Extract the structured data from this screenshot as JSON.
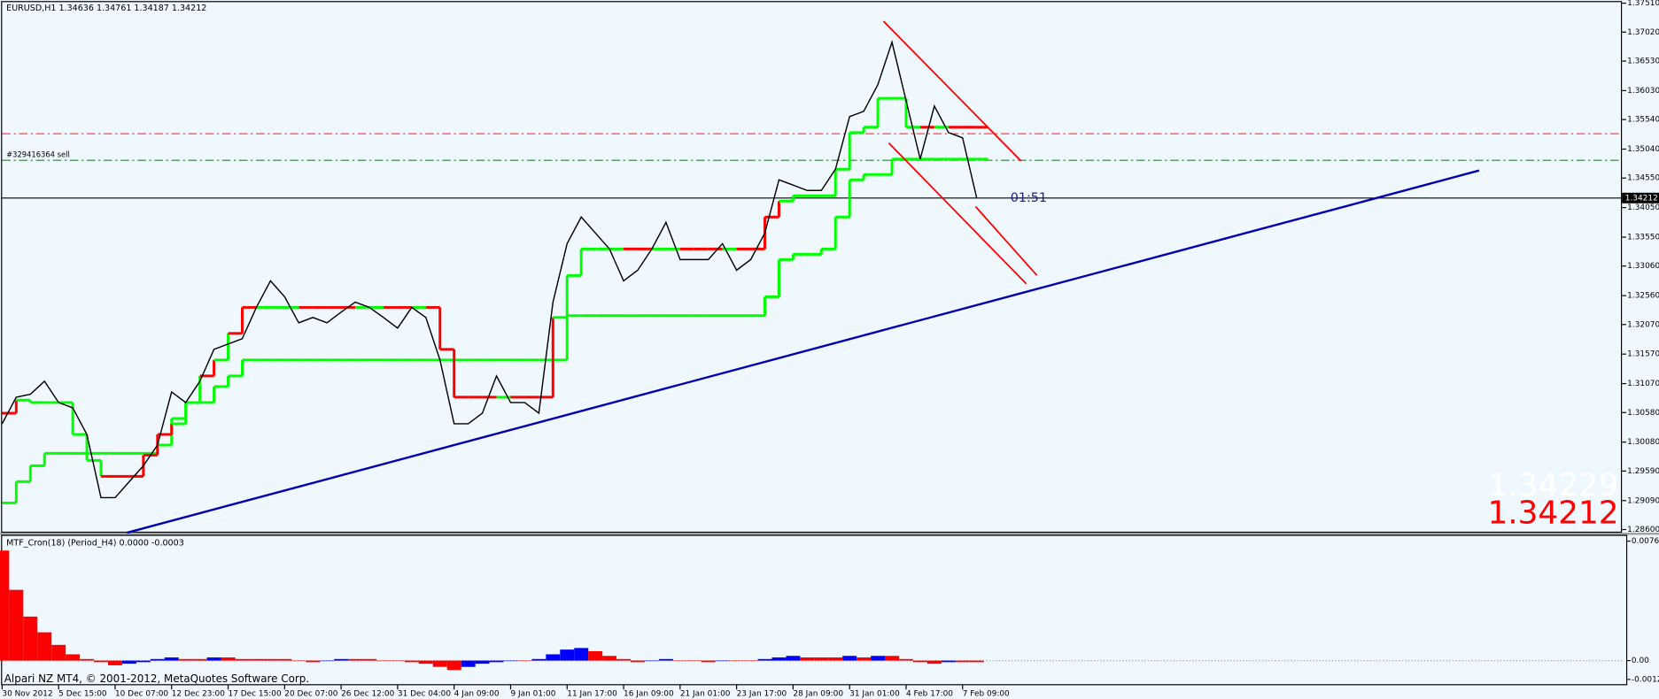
{
  "chart_data": [
    {
      "type": "line",
      "title": "EURUSD,H1  1.34636 1.34761 1.34187 1.34212",
      "categories": [
        "30 Nov 2012",
        null,
        null,
        null,
        "5 Dec 15:00",
        null,
        null,
        null,
        "10 Dec 07:00",
        null,
        null,
        null,
        "12 Dec 23:00",
        null,
        null,
        null,
        "17 Dec 15:00",
        null,
        null,
        null,
        "20 Dec 07:00",
        null,
        null,
        null,
        "26 Dec 12:00",
        null,
        null,
        null,
        "31 Dec 04:00",
        null,
        null,
        null,
        "4 Jan 09:00",
        null,
        null,
        null,
        "9 Jan 01:00",
        null,
        null,
        null,
        "11 Jan 17:00",
        null,
        null,
        null,
        "16 Jan 09:00",
        null,
        null,
        null,
        "21 Jan 01:00",
        null,
        null,
        null,
        "23 Jan 17:00",
        null,
        null,
        null,
        "28 Jan 09:00",
        null,
        null,
        null,
        "31 Jan 01:00",
        null,
        null,
        null,
        "4 Feb 17:00",
        null,
        null,
        null,
        "7 Feb 09:00",
        null
      ],
      "series": [
        {
          "color": "#000000",
          "values": [
            1.3039,
            1.3084,
            1.3089,
            1.3111,
            1.3075,
            1.3066,
            1.3021,
            1.2914,
            1.2914,
            1.2941,
            1.2968,
            1.3003,
            1.3093,
            1.3075,
            1.3111,
            1.3165,
            1.3174,
            1.3183,
            1.3236,
            1.3281,
            1.3254,
            1.321,
            1.3219,
            1.321,
            1.3228,
            1.3245,
            1.3236,
            1.3219,
            1.3201,
            1.3236,
            1.3219,
            1.3147,
            1.3039,
            1.3039,
            1.3057,
            1.312,
            1.3075,
            1.3075,
            1.3057,
            1.3245,
            1.3344,
            1.3389,
            1.3362,
            1.3335,
            1.3281,
            1.3299,
            1.3335,
            1.338,
            1.3317,
            1.3317,
            1.3317,
            1.3344,
            1.3299,
            1.3317,
            1.3362,
            1.3452,
            1.3443,
            1.3434,
            1.3434,
            1.347,
            1.3559,
            1.3568,
            1.3613,
            1.3685,
            1.3586,
            1.3487,
            1.3577,
            1.3532,
            1.3523,
            1.3421
          ]
        },
        {
          "color": "#00ff00",
          "down_color": "#ff0000",
          "values": [
            1.3057,
            1.3079,
            1.3075,
            1.3075,
            1.3075,
            1.3021,
            1.2977,
            1.295,
            1.295,
            1.295,
            1.2986,
            1.3021,
            1.3039,
            1.3075,
            1.312,
            1.3147,
            1.3192,
            1.3236,
            1.3236,
            1.3236,
            1.3236,
            1.3236,
            1.3236,
            1.3236,
            1.3236,
            1.3236,
            1.3236,
            1.3236,
            1.3236,
            1.3236,
            1.3236,
            1.3165,
            1.3084,
            1.3084,
            1.3084,
            1.3084,
            1.3084,
            1.3084,
            1.3084,
            1.3219,
            1.329,
            1.3335,
            1.3335,
            1.3335,
            1.3335,
            1.3335,
            1.3335,
            1.3335,
            1.3335,
            1.3335,
            1.3335,
            1.3335,
            1.3335,
            1.3335,
            1.3389,
            1.3416,
            1.3425,
            1.3425,
            1.3425,
            1.347,
            1.3532,
            1.3541,
            1.359,
            1.359,
            1.3541,
            1.3541,
            1.3541,
            1.3541,
            1.3541,
            1.3541
          ]
        },
        {
          "color": "#00ff00",
          "values": [
            1.2905,
            1.2941,
            1.2968,
            1.2989,
            1.2989,
            1.2989,
            1.2989,
            1.2989,
            1.2989,
            1.2989,
            1.2989,
            1.3003,
            1.3048,
            1.3075,
            1.3075,
            1.3102,
            1.312,
            1.3147,
            1.3147,
            1.3147,
            1.3147,
            1.3147,
            1.3147,
            1.3147,
            1.3147,
            1.3147,
            1.3147,
            1.3147,
            1.3147,
            1.3147,
            1.3147,
            1.3147,
            1.3147,
            1.3147,
            1.3147,
            1.3147,
            1.3147,
            1.3147,
            1.3147,
            1.3147,
            1.3222,
            1.3222,
            1.3222,
            1.3222,
            1.3222,
            1.3222,
            1.3222,
            1.3222,
            1.3222,
            1.3222,
            1.3222,
            1.3222,
            1.3222,
            1.3222,
            1.3254,
            1.3317,
            1.3326,
            1.3326,
            1.3335,
            1.3389,
            1.3452,
            1.3461,
            1.3461,
            1.3487,
            1.3487,
            1.3487,
            1.3487,
            1.3487,
            1.3487,
            1.3487
          ]
        }
      ],
      "ylim": [
        1.286,
        1.3751
      ],
      "yticks": [
        {
          "value": 1.3751,
          "label": "1.37510"
        },
        {
          "value": 1.3702,
          "label": "1.37020"
        },
        {
          "value": 1.3653,
          "label": "1.36530"
        },
        {
          "value": 1.3603,
          "label": "1.36030"
        },
        {
          "value": 1.3554,
          "label": "1.35540"
        },
        {
          "value": 1.3504,
          "label": "1.35040"
        },
        {
          "value": 1.3455,
          "label": "1.34550"
        },
        {
          "value": 1.3405,
          "label": "1.34050"
        },
        {
          "value": 1.3355,
          "label": "1.33550"
        },
        {
          "value": 1.3306,
          "label": "1.33060"
        },
        {
          "value": 1.3256,
          "label": "1.32560"
        },
        {
          "value": 1.3207,
          "label": "1.32070"
        },
        {
          "value": 1.3157,
          "label": "1.31570"
        },
        {
          "value": 1.3107,
          "label": "1.31070"
        },
        {
          "value": 1.3058,
          "label": "1.30580"
        },
        {
          "value": 1.3008,
          "label": "1.30080"
        },
        {
          "value": 1.2959,
          "label": "1.29590"
        },
        {
          "value": 1.2909,
          "label": "1.29090"
        },
        {
          "value": 1.286,
          "label": "1.28600"
        }
      ],
      "stop_level": {
        "value": 1.353,
        "color": "#ff4040"
      },
      "order_level": {
        "value": 1.3485,
        "color": "#00a000",
        "label": "#329416364 sell"
      },
      "bid": 1.34212,
      "ask": 1.34229,
      "timer": "01:51"
    },
    {
      "type": "bar",
      "title": "MTF_Cron(18) (Period_H4) 0.0000 -0.0003",
      "values": [
        0.007,
        0.0045,
        0.0028,
        0.0018,
        0.001,
        0.0004,
        0.0001,
        -0.0001,
        -0.0003,
        -0.0002,
        -0.0001,
        0.0001,
        0.0002,
        0.0001,
        0.0001,
        0.0002,
        0.0002,
        0.0001,
        0.0001,
        0.0001,
        0.0001,
        0.0,
        -0.0001,
        0.0,
        0.0001,
        0.0001,
        0.0001,
        0.0,
        0.0,
        -0.0001,
        -0.0002,
        -0.0004,
        -0.0006,
        -0.0004,
        -0.0002,
        -0.0001,
        0.0,
        0.0,
        0.0001,
        0.0004,
        0.0007,
        0.0008,
        0.0006,
        0.0003,
        0.0001,
        -0.0001,
        0.0,
        0.0001,
        0.0,
        0.0,
        -0.0001,
        0.0,
        0.0,
        0.0,
        0.0001,
        0.0002,
        0.0003,
        0.0002,
        0.0002,
        0.0002,
        0.0003,
        0.0002,
        0.0003,
        0.0003,
        0.0001,
        -0.0001,
        -0.0002,
        -0.0001,
        -0.0001,
        -0.0001
      ],
      "up_color": "#0000ff",
      "down_color": "#ff0000",
      "ylim": [
        -0.0015,
        0.008
      ],
      "yticks": [
        0.0076,
        {
          "value": 0,
          "label": "0.00"
        },
        -0.0012
      ]
    }
  ],
  "footer": "Alpari NZ MT4, © 2001-2012, MetaQuotes Software Corp."
}
